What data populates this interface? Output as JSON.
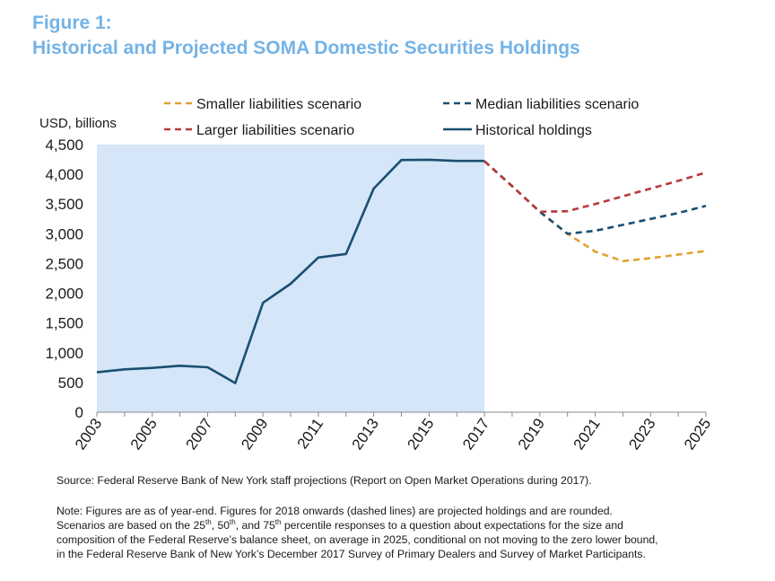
{
  "figure_label": "Figure 1:",
  "title": "Historical and Projected SOMA Domestic Securities Holdings",
  "chart_data": {
    "type": "line",
    "ylabel": "USD, billions",
    "xlim": [
      2003,
      2025
    ],
    "ylim": [
      0,
      4500
    ],
    "yticks": [
      0,
      500,
      1000,
      1500,
      2000,
      2500,
      3000,
      3500,
      4000,
      4500
    ],
    "ytick_labels": [
      "0",
      "500",
      "1,000",
      "1,500",
      "2,000",
      "2,500",
      "3,000",
      "3,500",
      "4,000",
      "4,500"
    ],
    "xticks": [
      2003,
      2005,
      2007,
      2009,
      2011,
      2013,
      2015,
      2017,
      2019,
      2021,
      2023,
      2025
    ],
    "xtick_labels": [
      "2003",
      "2005",
      "2007",
      "2009",
      "2011",
      "2013",
      "2015",
      "2017",
      "2019",
      "2021",
      "2023",
      "2025"
    ],
    "shaded_region": [
      2003,
      2017
    ],
    "legend_position": "top",
    "series": [
      {
        "name": "Smaller liabilities scenario",
        "style": "dashed",
        "color": "#e0a030",
        "x": [
          2017,
          2018,
          2019,
          2020,
          2021,
          2022,
          2023,
          2024,
          2025
        ],
        "y": [
          4220,
          3800,
          3370,
          3000,
          2700,
          2540,
          2590,
          2650,
          2710
        ]
      },
      {
        "name": "Median liabilities scenario",
        "style": "dashed",
        "color": "#1a4f72",
        "x": [
          2017,
          2018,
          2019,
          2020,
          2021,
          2022,
          2023,
          2024,
          2025
        ],
        "y": [
          4220,
          3800,
          3370,
          3000,
          3050,
          3150,
          3250,
          3350,
          3470
        ]
      },
      {
        "name": "Larger liabilities scenario",
        "style": "dashed",
        "color": "#b83a3a",
        "x": [
          2017,
          2018,
          2019,
          2020,
          2021,
          2022,
          2023,
          2024,
          2025
        ],
        "y": [
          4220,
          3800,
          3370,
          3380,
          3500,
          3630,
          3760,
          3890,
          4030
        ]
      },
      {
        "name": "Historical holdings",
        "style": "solid",
        "color": "#1a4f72",
        "x": [
          2003,
          2004,
          2005,
          2006,
          2007,
          2008,
          2009,
          2010,
          2011,
          2012,
          2013,
          2014,
          2015,
          2016,
          2017
        ],
        "y": [
          670,
          720,
          745,
          780,
          755,
          490,
          1840,
          2160,
          2600,
          2660,
          3760,
          4240,
          4245,
          4225,
          4225
        ]
      }
    ]
  },
  "source": "Source:  Federal Reserve Bank of New York staff projections (Report on Open Market Operations during 2017).",
  "note": {
    "line1": "Note:  Figures are as of year-end.  Figures for 2018 onwards (dashed lines) are projected holdings and are rounded.",
    "line2_a": "Scenarios are based on the 25",
    "line2_sup1": "th",
    "line2_b": ", 50",
    "line2_sup2": "th",
    "line2_c": ", and 75",
    "line2_sup3": "th",
    "line2_d": " percentile responses to a question about expectations for the size and",
    "line3": "composition of the Federal Reserve’s balance sheet, on average in 2025, conditional on not moving to the zero lower bound,",
    "line4": "in the Federal Reserve Bank of New York’s December 2017 Survey of Primary Dealers and Survey of Market Participants."
  }
}
